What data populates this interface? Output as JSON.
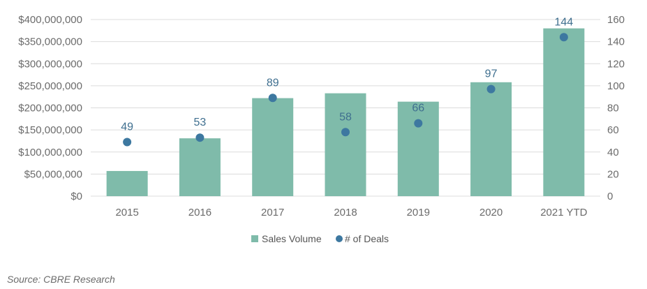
{
  "chart_data": {
    "type": "bar",
    "categories": [
      "2015",
      "2016",
      "2017",
      "2018",
      "2019",
      "2020",
      "2021 YTD"
    ],
    "series": [
      {
        "name": "Sales Volume",
        "type": "bar",
        "axis": "left",
        "values": [
          57000000,
          131000000,
          222000000,
          233000000,
          214000000,
          258000000,
          380000000
        ]
      },
      {
        "name": "# of Deals",
        "type": "scatter",
        "axis": "right",
        "values": [
          49,
          53,
          89,
          58,
          66,
          97,
          144
        ],
        "data_labels": [
          "49",
          "53",
          "89",
          "58",
          "66",
          "97",
          "144"
        ]
      }
    ],
    "ylim_left": [
      0,
      400000000
    ],
    "ylim_right": [
      0,
      160
    ],
    "y_left_ticks": [
      "$0",
      "$50,000,000",
      "$100,000,000",
      "$150,000,000",
      "$200,000,000",
      "$250,000,000",
      "$300,000,000",
      "$350,000,000",
      "$400,000,000"
    ],
    "y_right_ticks": [
      "0",
      "20",
      "40",
      "60",
      "80",
      "100",
      "120",
      "140",
      "160"
    ],
    "grid": true,
    "legend_position": "bottom",
    "colors": {
      "bar": "#7fbbaa",
      "marker": "#3d78a0",
      "grid": "#dcdcdc"
    }
  },
  "source": "Source: CBRE Research"
}
